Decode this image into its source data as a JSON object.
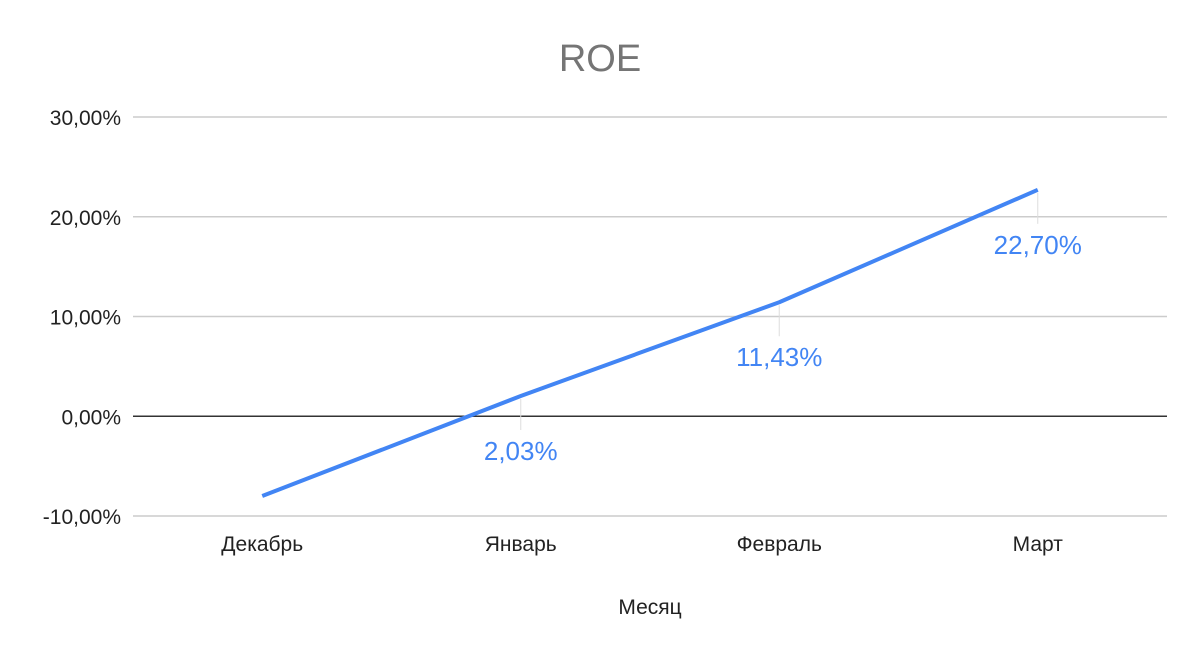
{
  "chart_data": {
    "type": "line",
    "title": "ROE",
    "xlabel": "Месяц",
    "ylabel": "",
    "categories": [
      "Декабрь",
      "Январь",
      "Февраль",
      "Март"
    ],
    "series": [
      {
        "values": [
          -8.0,
          2.03,
          11.43,
          22.7
        ],
        "labels": [
          "",
          "2,03%",
          "11,43%",
          "22,70%"
        ],
        "color": "#4285f4"
      }
    ],
    "yticks": [
      -10,
      0,
      10,
      20,
      30
    ],
    "ytick_labels": [
      "-10,00%",
      "0,00%",
      "10,00%",
      "20,00%",
      "30,00%"
    ],
    "ylim": [
      -10,
      30
    ],
    "grid": true,
    "legend": "none",
    "colors": {
      "title": "#757575",
      "grid": "#cccccc",
      "zero_line": "#333333",
      "text": "#222222"
    }
  }
}
